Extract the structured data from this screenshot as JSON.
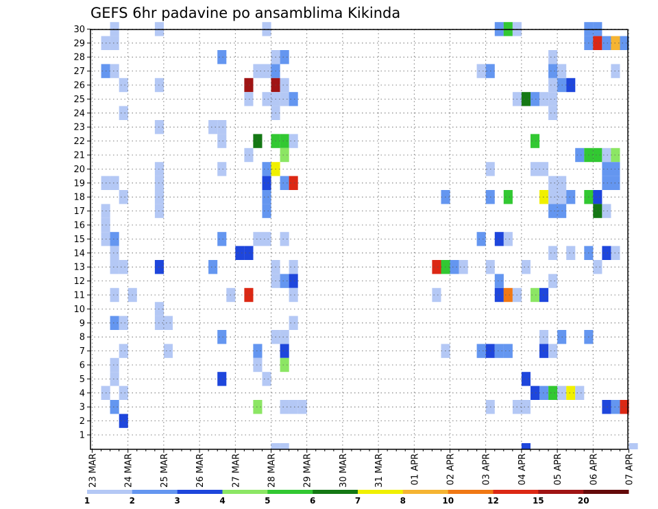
{
  "chart_data": {
    "type": "heatmap",
    "title": "GEFS 6hr padavine po ansamblima Kikinda",
    "xlabel": "",
    "ylabel": "",
    "x_ticks": [
      "23 MAR",
      "24 MAR",
      "25 MAR",
      "26 MAR",
      "27 MAR",
      "28 MAR",
      "29 MAR",
      "30 MAR",
      "31 MAR",
      "01 APR",
      "02 APR",
      "03 APR",
      "04 APR",
      "05 APR",
      "06 APR",
      "07 APR"
    ],
    "y_ticks": [
      "1",
      "2",
      "3",
      "4",
      "5",
      "6",
      "7",
      "8",
      "9",
      "10",
      "11",
      "12",
      "13",
      "14",
      "15",
      "16",
      "17",
      "18",
      "19",
      "20",
      "21",
      "22",
      "23",
      "24",
      "25",
      "26",
      "27",
      "28",
      "29",
      "30"
    ],
    "x_step": "6 hours",
    "y_range": [
      0,
      30
    ],
    "grid": true,
    "legend_placement": "bottom",
    "legend": {
      "labels": [
        "1",
        "2",
        "3",
        "4",
        "5",
        "6",
        "7",
        "8",
        "10",
        "12",
        "15",
        "20"
      ],
      "colors": [
        "#b4c8f5",
        "#6496f0",
        "#1e46dc",
        "#8ce664",
        "#32c832",
        "#147814",
        "#f0f000",
        "#f5b432",
        "#f07814",
        "#dc2814",
        "#a01414",
        "#640a0a"
      ]
    },
    "bins": [
      "1-2",
      "2-3",
      "3-4",
      "4-5",
      "5-6",
      "6-7",
      "7-8",
      "8-10",
      "10-12",
      "12-15",
      "15-20",
      ">20"
    ],
    "cells": [
      [
        "23 MAR 12Z",
        30,
        0
      ],
      [
        "23 MAR 06Z",
        27,
        1
      ],
      [
        "23 MAR 12Z",
        27,
        0
      ],
      [
        "23 MAR 06Z",
        29,
        0
      ],
      [
        "23 MAR 12Z",
        29,
        0
      ],
      [
        "23 MAR 06Z",
        19,
        0
      ],
      [
        "23 MAR 12Z",
        19,
        0
      ],
      [
        "23 MAR 18Z",
        26,
        0
      ],
      [
        "23 MAR 18Z",
        24,
        0
      ],
      [
        "23 MAR 06Z",
        17,
        0
      ],
      [
        "23 MAR 06Z",
        16,
        0
      ],
      [
        "23 MAR 06Z",
        15,
        0
      ],
      [
        "23 MAR 12Z",
        15,
        1
      ],
      [
        "23 MAR 12Z",
        14,
        0
      ],
      [
        "23 MAR 12Z",
        13,
        0
      ],
      [
        "23 MAR 18Z",
        13,
        0
      ],
      [
        "23 MAR 12Z",
        11,
        0
      ],
      [
        "23 MAR 12Z",
        9,
        1
      ],
      [
        "23 MAR 18Z",
        9,
        0
      ],
      [
        "23 MAR 12Z",
        6,
        0
      ],
      [
        "23 MAR 12Z",
        5,
        0
      ],
      [
        "23 MAR 06Z",
        4,
        0
      ],
      [
        "23 MAR 18Z",
        4,
        0
      ],
      [
        "23 MAR 12Z",
        3,
        1
      ],
      [
        "23 MAR 18Z",
        2,
        2
      ],
      [
        "23 MAR 18Z",
        18,
        0
      ],
      [
        "23 MAR 18Z",
        7,
        0
      ],
      [
        "24 MAR 00Z",
        11,
        0
      ],
      [
        "24 MAR 18Z",
        30,
        0
      ],
      [
        "24 MAR 18Z",
        26,
        0
      ],
      [
        "24 MAR 18Z",
        23,
        0
      ],
      [
        "24 MAR 18Z",
        20,
        0
      ],
      [
        "24 MAR 18Z",
        19,
        0
      ],
      [
        "24 MAR 18Z",
        18,
        0
      ],
      [
        "24 MAR 18Z",
        17,
        0
      ],
      [
        "24 MAR 18Z",
        13,
        2
      ],
      [
        "24 MAR 18Z",
        10,
        0
      ],
      [
        "24 MAR 18Z",
        9,
        0
      ],
      [
        "25 MAR 00Z",
        9,
        0
      ],
      [
        "25 MAR 00Z",
        7,
        0
      ],
      [
        "26 MAR 06Z",
        23,
        0
      ],
      [
        "26 MAR 12Z",
        23,
        0
      ],
      [
        "26 MAR 12Z",
        22,
        0
      ],
      [
        "26 MAR 12Z",
        20,
        0
      ],
      [
        "26 MAR 12Z",
        15,
        1
      ],
      [
        "26 MAR 12Z",
        28,
        1
      ],
      [
        "26 MAR 06Z",
        13,
        1
      ],
      [
        "26 MAR 12Z",
        8,
        1
      ],
      [
        "26 MAR 12Z",
        5,
        2
      ],
      [
        "26 MAR 18Z",
        11,
        0
      ],
      [
        "27 MAR 06Z",
        26,
        10
      ],
      [
        "27 MAR 06Z",
        21,
        0
      ],
      [
        "27 MAR 00Z",
        14,
        2
      ],
      [
        "27 MAR 06Z",
        14,
        2
      ],
      [
        "27 MAR 06Z",
        11,
        9
      ],
      [
        "27 MAR 12Z",
        27,
        0
      ],
      [
        "27 MAR 18Z",
        27,
        0
      ],
      [
        "28 MAR 00Z",
        27,
        1
      ],
      [
        "27 MAR 12Z",
        22,
        5
      ],
      [
        "27 MAR 12Z",
        15,
        0
      ],
      [
        "27 MAR 18Z",
        15,
        0
      ],
      [
        "27 MAR 12Z",
        7,
        1
      ],
      [
        "27 MAR 12Z",
        6,
        0
      ],
      [
        "27 MAR 12Z",
        3,
        3
      ],
      [
        "27 MAR 06Z",
        25,
        0
      ],
      [
        "27 MAR 18Z",
        5,
        0
      ],
      [
        "27 MAR 18Z",
        30,
        0
      ],
      [
        "28 MAR 00Z",
        28,
        0
      ],
      [
        "28 MAR 06Z",
        28,
        1
      ],
      [
        "28 MAR 00Z",
        26,
        10
      ],
      [
        "28 MAR 06Z",
        26,
        0
      ],
      [
        "27 MAR 18Z",
        25,
        0
      ],
      [
        "28 MAR 00Z",
        25,
        0
      ],
      [
        "28 MAR 06Z",
        25,
        0
      ],
      [
        "28 MAR 12Z",
        25,
        1
      ],
      [
        "28 MAR 00Z",
        24,
        0
      ],
      [
        "28 MAR 00Z",
        22,
        4
      ],
      [
        "28 MAR 06Z",
        22,
        4
      ],
      [
        "28 MAR 12Z",
        22,
        0
      ],
      [
        "28 MAR 06Z",
        21,
        3
      ],
      [
        "27 MAR 18Z",
        20,
        1
      ],
      [
        "28 MAR 00Z",
        20,
        6
      ],
      [
        "27 MAR 18Z",
        19,
        2
      ],
      [
        "28 MAR 06Z",
        19,
        1
      ],
      [
        "28 MAR 12Z",
        19,
        9
      ],
      [
        "27 MAR 18Z",
        18,
        1
      ],
      [
        "27 MAR 18Z",
        17,
        1
      ],
      [
        "28 MAR 06Z",
        15,
        0
      ],
      [
        "28 MAR 00Z",
        13,
        0
      ],
      [
        "28 MAR 12Z",
        13,
        0
      ],
      [
        "28 MAR 00Z",
        12,
        0
      ],
      [
        "28 MAR 06Z",
        12,
        1
      ],
      [
        "28 MAR 12Z",
        12,
        2
      ],
      [
        "28 MAR 12Z",
        11,
        0
      ],
      [
        "28 MAR 06Z",
        7,
        2
      ],
      [
        "28 MAR 00Z",
        8,
        0
      ],
      [
        "28 MAR 06Z",
        8,
        0
      ],
      [
        "28 MAR 06Z",
        6,
        3
      ],
      [
        "28 MAR 12Z",
        9,
        0
      ],
      [
        "28 MAR 06Z",
        3,
        0
      ],
      [
        "28 MAR 12Z",
        3,
        0
      ],
      [
        "28 MAR 18Z",
        3,
        0
      ],
      [
        "01 APR 12Z",
        13,
        9
      ],
      [
        "01 APR 18Z",
        13,
        4
      ],
      [
        "02 APR 00Z",
        13,
        1
      ],
      [
        "02 APR 06Z",
        13,
        0
      ],
      [
        "01 APR 18Z",
        18,
        1
      ],
      [
        "01 APR 12Z",
        11,
        0
      ],
      [
        "01 APR 18Z",
        7,
        0
      ],
      [
        "02 APR 18Z",
        27,
        0
      ],
      [
        "03 APR 00Z",
        27,
        1
      ],
      [
        "03 APR 00Z",
        20,
        0
      ],
      [
        "03 APR 00Z",
        18,
        1
      ],
      [
        "02 APR 18Z",
        15,
        1
      ],
      [
        "03 APR 00Z",
        13,
        0
      ],
      [
        "02 APR 18Z",
        7,
        1
      ],
      [
        "03 APR 00Z",
        7,
        2
      ],
      [
        "03 APR 06Z",
        7,
        1
      ],
      [
        "03 APR 12Z",
        7,
        1
      ],
      [
        "03 APR 00Z",
        3,
        0
      ],
      [
        "03 APR 06Z",
        30,
        1
      ],
      [
        "03 APR 12Z",
        30,
        4
      ],
      [
        "03 APR 18Z",
        30,
        0
      ],
      [
        "03 APR 18Z",
        25,
        0
      ],
      [
        "04 APR 00Z",
        25,
        5
      ],
      [
        "04 APR 06Z",
        25,
        1
      ],
      [
        "03 APR 12Z",
        18,
        4
      ],
      [
        "03 APR 06Z",
        15,
        2
      ],
      [
        "03 APR 12Z",
        15,
        0
      ],
      [
        "03 APR 06Z",
        12,
        1
      ],
      [
        "03 APR 06Z",
        11,
        2
      ],
      [
        "03 APR 12Z",
        11,
        8
      ],
      [
        "03 APR 18Z",
        11,
        0
      ],
      [
        "04 APR 00Z",
        13,
        0
      ],
      [
        "04 APR 00Z",
        5,
        2
      ],
      [
        "03 APR 18Z",
        3,
        0
      ],
      [
        "04 APR 00Z",
        3,
        0
      ],
      [
        "04 APR 06Z",
        22,
        4
      ],
      [
        "04 APR 06Z",
        20,
        0
      ],
      [
        "04 APR 12Z",
        20,
        0
      ],
      [
        "04 APR 12Z",
        25,
        0
      ],
      [
        "04 APR 18Z",
        25,
        0
      ],
      [
        "04 APR 18Z",
        26,
        0
      ],
      [
        "05 APR 00Z",
        26,
        1
      ],
      [
        "05 APR 06Z",
        26,
        2
      ],
      [
        "04 APR 18Z",
        28,
        0
      ],
      [
        "04 APR 18Z",
        27,
        1
      ],
      [
        "05 APR 00Z",
        27,
        0
      ],
      [
        "04 APR 18Z",
        24,
        0
      ],
      [
        "04 APR 18Z",
        19,
        0
      ],
      [
        "05 APR 00Z",
        19,
        0
      ],
      [
        "04 APR 12Z",
        18,
        6
      ],
      [
        "04 APR 18Z",
        18,
        0
      ],
      [
        "05 APR 00Z",
        18,
        0
      ],
      [
        "05 APR 06Z",
        18,
        1
      ],
      [
        "04 APR 18Z",
        17,
        1
      ],
      [
        "05 APR 00Z",
        17,
        1
      ],
      [
        "04 APR 18Z",
        14,
        0
      ],
      [
        "05 APR 06Z",
        14,
        0
      ],
      [
        "04 APR 18Z",
        12,
        0
      ],
      [
        "04 APR 06Z",
        11,
        3
      ],
      [
        "04 APR 12Z",
        11,
        2
      ],
      [
        "04 APR 12Z",
        8,
        0
      ],
      [
        "05 APR 00Z",
        8,
        1
      ],
      [
        "04 APR 12Z",
        7,
        2
      ],
      [
        "04 APR 18Z",
        7,
        0
      ],
      [
        "04 APR 06Z",
        4,
        2
      ],
      [
        "04 APR 12Z",
        4,
        1
      ],
      [
        "04 APR 18Z",
        4,
        4
      ],
      [
        "05 APR 00Z",
        4,
        0
      ],
      [
        "05 APR 06Z",
        4,
        6
      ],
      [
        "05 APR 12Z",
        4,
        0
      ],
      [
        "05 APR 18Z",
        30,
        1
      ],
      [
        "06 APR 00Z",
        30,
        1
      ],
      [
        "05 APR 18Z",
        29,
        1
      ],
      [
        "06 APR 00Z",
        29,
        9
      ],
      [
        "06 APR 06Z",
        29,
        1
      ],
      [
        "06 APR 12Z",
        29,
        7
      ],
      [
        "06 APR 18Z",
        29,
        1
      ],
      [
        "06 APR 12Z",
        27,
        0
      ],
      [
        "05 APR 12Z",
        21,
        1
      ],
      [
        "05 APR 18Z",
        21,
        4
      ],
      [
        "06 APR 00Z",
        21,
        4
      ],
      [
        "06 APR 06Z",
        21,
        0
      ],
      [
        "06 APR 12Z",
        21,
        3
      ],
      [
        "06 APR 06Z",
        20,
        1
      ],
      [
        "06 APR 12Z",
        20,
        1
      ],
      [
        "06 APR 06Z",
        19,
        1
      ],
      [
        "06 APR 12Z",
        19,
        1
      ],
      [
        "05 APR 18Z",
        18,
        4
      ],
      [
        "06 APR 00Z",
        18,
        2
      ],
      [
        "06 APR 00Z",
        17,
        5
      ],
      [
        "06 APR 06Z",
        17,
        0
      ],
      [
        "05 APR 18Z",
        14,
        1
      ],
      [
        "06 APR 06Z",
        14,
        2
      ],
      [
        "06 APR 12Z",
        14,
        0
      ],
      [
        "06 APR 00Z",
        13,
        0
      ],
      [
        "05 APR 18Z",
        8,
        1
      ],
      [
        "06 APR 06Z",
        3,
        2
      ],
      [
        "06 APR 12Z",
        3,
        1
      ],
      [
        "06 APR 18Z",
        3,
        9
      ]
    ],
    "bottom_row_cells": [
      [
        "28 MAR 00Z",
        0
      ],
      [
        "28 MAR 06Z",
        0
      ],
      [
        "04 APR 00Z",
        2
      ],
      [
        "07 APR 00Z",
        0
      ]
    ]
  }
}
